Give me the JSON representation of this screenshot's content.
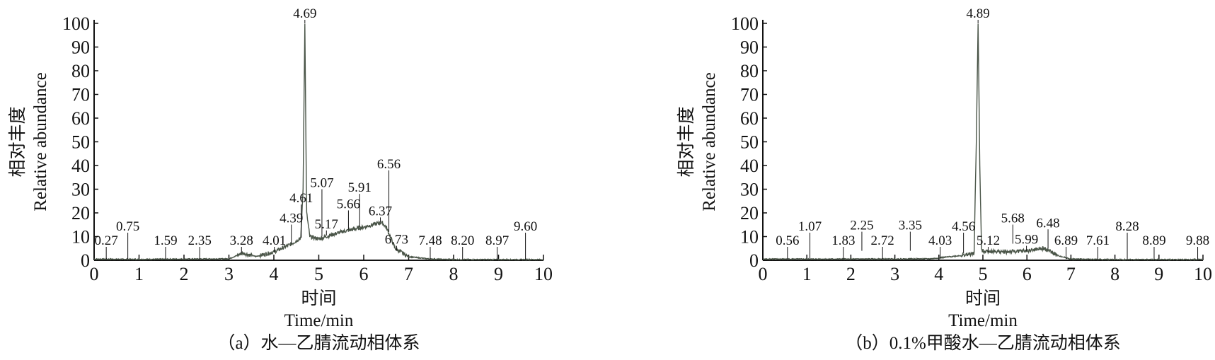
{
  "chart_data": [
    {
      "type": "line",
      "caption": "（a）水—乙腈流动相体系",
      "xlabel_cn": "时间",
      "xlabel": "Time/min",
      "ylabel_cn": "相对丰度",
      "ylabel": "Relative abundance",
      "xlim": [
        0,
        10
      ],
      "ylim": [
        0,
        100
      ],
      "xticks": [
        "0",
        "1",
        "2",
        "3",
        "4",
        "5",
        "6",
        "7",
        "8",
        "9",
        "10"
      ],
      "yticks": [
        "0",
        "10",
        "20",
        "30",
        "40",
        "50",
        "60",
        "70",
        "80",
        "90",
        "100"
      ],
      "grid": false,
      "line_color": "#4a5548",
      "trace": [
        [
          0,
          0.5
        ],
        [
          1,
          0.4
        ],
        [
          2,
          0.5
        ],
        [
          3,
          0.6
        ],
        [
          3.3,
          3
        ],
        [
          3.6,
          1.6
        ],
        [
          4,
          3.5
        ],
        [
          4.4,
          7
        ],
        [
          4.6,
          9.5
        ],
        [
          4.65,
          30
        ],
        [
          4.69,
          100
        ],
        [
          4.73,
          20
        ],
        [
          4.8,
          10
        ],
        [
          5,
          9
        ],
        [
          5.5,
          12
        ],
        [
          6,
          14
        ],
        [
          6.4,
          16
        ],
        [
          6.5,
          14
        ],
        [
          6.7,
          5
        ],
        [
          7,
          1.5
        ],
        [
          7.5,
          0.5
        ],
        [
          8,
          0.3
        ],
        [
          10,
          0.3
        ]
      ],
      "peak_labels": [
        {
          "text": "0.27",
          "x": 0.27,
          "y": 0.5
        },
        {
          "text": "0.75",
          "x": 0.75,
          "y": 0.5
        },
        {
          "text": "1.59",
          "x": 1.59,
          "y": 0.5
        },
        {
          "text": "2.35",
          "x": 2.35,
          "y": 0.5
        },
        {
          "text": "3.28",
          "x": 3.28,
          "y": 3
        },
        {
          "text": "4.01",
          "x": 4.01,
          "y": 3.5
        },
        {
          "text": "4.39",
          "x": 4.39,
          "y": 7
        },
        {
          "text": "4.61",
          "x": 4.61,
          "y": 9.5
        },
        {
          "text": "4.69",
          "x": 4.69,
          "y": 100
        },
        {
          "text": "5.07",
          "x": 5.07,
          "y": 10
        },
        {
          "text": "5.17",
          "x": 5.17,
          "y": 10.5
        },
        {
          "text": "5.66",
          "x": 5.66,
          "y": 13
        },
        {
          "text": "5.91",
          "x": 5.91,
          "y": 14
        },
        {
          "text": "6.37",
          "x": 6.37,
          "y": 16
        },
        {
          "text": "6.56",
          "x": 6.56,
          "y": 12
        },
        {
          "text": "6.73",
          "x": 6.73,
          "y": 4
        },
        {
          "text": "7.48",
          "x": 7.48,
          "y": 0.5
        },
        {
          "text": "8.20",
          "x": 8.2,
          "y": 0.3
        },
        {
          "text": "8.97",
          "x": 8.97,
          "y": 0.3
        },
        {
          "text": "9.60",
          "x": 9.6,
          "y": 0.3
        }
      ]
    },
    {
      "type": "line",
      "caption": "（b）0.1%甲酸水—乙腈流动相体系",
      "xlabel_cn": "时间",
      "xlabel": "Time/min",
      "ylabel_cn": "相对丰度",
      "ylabel": "Relative abundance",
      "xlim": [
        0,
        10
      ],
      "ylim": [
        0,
        100
      ],
      "xticks": [
        "0",
        "1",
        "2",
        "3",
        "4",
        "5",
        "6",
        "7",
        "8",
        "9",
        "10"
      ],
      "yticks": [
        "0",
        "10",
        "20",
        "30",
        "40",
        "50",
        "60",
        "70",
        "80",
        "90",
        "100"
      ],
      "grid": false,
      "line_color": "#4a5548",
      "trace": [
        [
          0,
          0.5
        ],
        [
          2,
          0.5
        ],
        [
          3.8,
          0.6
        ],
        [
          4,
          1
        ],
        [
          4.5,
          2
        ],
        [
          4.8,
          2.8
        ],
        [
          4.85,
          50
        ],
        [
          4.89,
          100
        ],
        [
          4.93,
          40
        ],
        [
          4.97,
          4
        ],
        [
          5.5,
          3.5
        ],
        [
          6,
          4
        ],
        [
          6.4,
          5
        ],
        [
          6.7,
          2
        ],
        [
          7,
          0.5
        ],
        [
          8,
          0.3
        ],
        [
          10,
          0.3
        ]
      ],
      "peak_labels": [
        {
          "text": "0.56",
          "x": 0.56,
          "y": 0.5
        },
        {
          "text": "1.07",
          "x": 1.07,
          "y": 0.5
        },
        {
          "text": "1.83",
          "x": 1.83,
          "y": 0.5
        },
        {
          "text": "2.25",
          "x": 2.25,
          "y": 4
        },
        {
          "text": "2.72",
          "x": 2.72,
          "y": 0.5
        },
        {
          "text": "3.35",
          "x": 3.35,
          "y": 4
        },
        {
          "text": "4.03",
          "x": 4.03,
          "y": 1
        },
        {
          "text": "4.56",
          "x": 4.56,
          "y": 3
        },
        {
          "text": "4.89",
          "x": 4.89,
          "y": 100
        },
        {
          "text": "5.12",
          "x": 5.12,
          "y": 3.5
        },
        {
          "text": "5.68",
          "x": 5.68,
          "y": 7
        },
        {
          "text": "5.99",
          "x": 5.99,
          "y": 4
        },
        {
          "text": "6.48",
          "x": 6.48,
          "y": 5
        },
        {
          "text": "6.89",
          "x": 6.89,
          "y": 0.5
        },
        {
          "text": "7.61",
          "x": 7.61,
          "y": 0.3
        },
        {
          "text": "8.28",
          "x": 8.28,
          "y": 0.3
        },
        {
          "text": "8.89",
          "x": 8.89,
          "y": 0.3
        },
        {
          "text": "9.88",
          "x": 9.88,
          "y": 0.3
        }
      ]
    }
  ]
}
